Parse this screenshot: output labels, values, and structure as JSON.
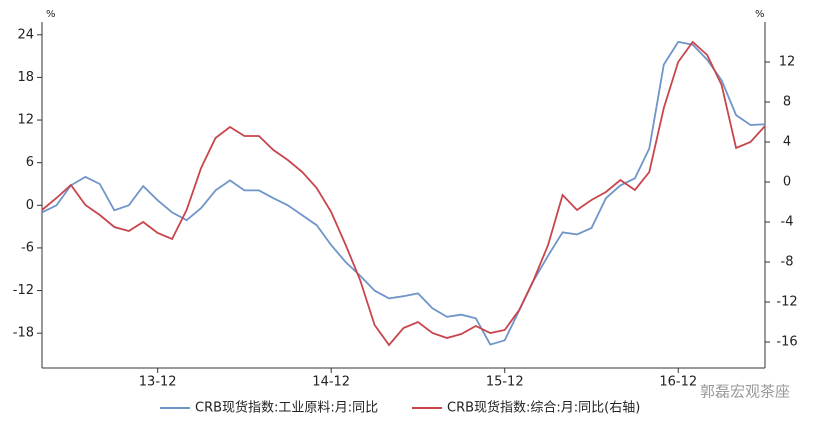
{
  "chart_data": {
    "type": "line",
    "y_unit": "%",
    "y2_unit": "%",
    "categories": [
      null,
      null,
      null,
      null,
      null,
      null,
      null,
      null,
      "13-12",
      null,
      null,
      null,
      null,
      null,
      null,
      null,
      null,
      null,
      null,
      null,
      "14-12",
      null,
      null,
      null,
      null,
      null,
      null,
      null,
      null,
      null,
      null,
      null,
      "15-12",
      null,
      null,
      null,
      null,
      null,
      null,
      null,
      null,
      null,
      null,
      null,
      "16-12",
      null,
      null,
      null,
      null,
      null,
      null
    ],
    "series": [
      {
        "name": "CRB现货指数:工业原料:月:同比",
        "color": "#6f95c9",
        "values": [
          -1,
          0,
          2.8,
          4,
          3,
          -0.7,
          0,
          2.7,
          0.7,
          -1,
          -2.1,
          -0.4,
          2.1,
          3.5,
          2.1,
          2.1,
          1,
          0,
          -1.4,
          -2.8,
          -5.6,
          -8,
          -9.9,
          -12,
          -13.1,
          -12.8,
          -12.4,
          -14.5,
          -15.7,
          -15.4,
          -15.9,
          -19.6,
          -19,
          -14.8,
          -10.6,
          -7.1,
          -3.8,
          -4.1,
          -3.2,
          1,
          2.8,
          3.8,
          8,
          19.8,
          23,
          22.6,
          20.5,
          17.6,
          12.7,
          11.3,
          11.4
        ]
      },
      {
        "name": "CRB现货指数:综合:月:同比(右轴)",
        "color": "#c9454c",
        "axis": "y2",
        "values": [
          -2.8,
          -1.6,
          -0.3,
          -2.3,
          -3.3,
          -4.5,
          -4.9,
          -4,
          -5.1,
          -5.7,
          -2.8,
          1.4,
          4.4,
          5.5,
          4.6,
          4.6,
          3.2,
          2.2,
          1,
          -0.6,
          -3,
          -6.3,
          -9.8,
          -14.3,
          -16.3,
          -14.6,
          -14,
          -15.1,
          -15.6,
          -15.2,
          -14.4,
          -15.1,
          -14.8,
          -12.8,
          -9.8,
          -6.3,
          -1.3,
          -2.8,
          -1.8,
          -1,
          0.2,
          -0.8,
          1,
          7.4,
          12,
          14,
          12.7,
          9.7,
          3.4,
          4,
          5.6
        ]
      }
    ],
    "ylim": [
      -22.9,
      25.8
    ],
    "yticks": [
      -18,
      -12,
      -6,
      0,
      6,
      12,
      18,
      24
    ],
    "y2lim": [
      -18.6,
      16
    ],
    "y2ticks": [
      -16,
      -12,
      -8,
      -4,
      0,
      4,
      8,
      12
    ],
    "watermark": "郭磊宏观茶座"
  }
}
